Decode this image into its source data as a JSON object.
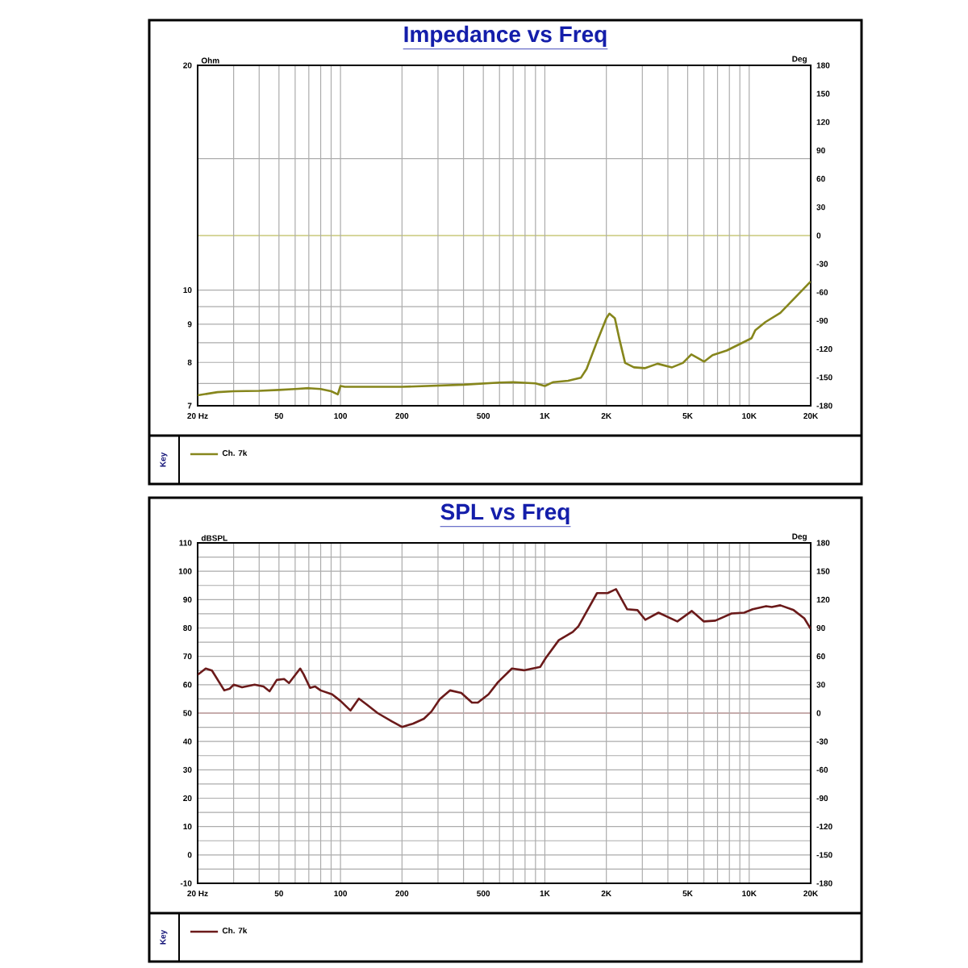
{
  "chart_data": [
    {
      "type": "line",
      "title": "Impedance vs Freq",
      "ylabel": "Ohm",
      "y2label": "Deg",
      "legend_title": "Key",
      "log": "xy",
      "grid": true,
      "legend": "bottom",
      "xlim": [
        20,
        20000
      ],
      "ylim": [
        7,
        20
      ],
      "y2lim": [
        -180,
        180
      ],
      "xticks": [
        {
          "value": 20,
          "label": "20 Hz"
        },
        {
          "value": 30,
          "label": null
        },
        {
          "value": 40,
          "label": null
        },
        {
          "value": 50,
          "label": "50"
        },
        {
          "value": 60,
          "label": null
        },
        {
          "value": 70,
          "label": null
        },
        {
          "value": 80,
          "label": null
        },
        {
          "value": 90,
          "label": null
        },
        {
          "value": 100,
          "label": "100"
        },
        {
          "value": 200,
          "label": "200"
        },
        {
          "value": 300,
          "label": null
        },
        {
          "value": 400,
          "label": null
        },
        {
          "value": 500,
          "label": "500"
        },
        {
          "value": 600,
          "label": null
        },
        {
          "value": 700,
          "label": null
        },
        {
          "value": 800,
          "label": null
        },
        {
          "value": 900,
          "label": null
        },
        {
          "value": 1000,
          "label": "1K"
        },
        {
          "value": 2000,
          "label": "2K"
        },
        {
          "value": 3000,
          "label": null
        },
        {
          "value": 4000,
          "label": null
        },
        {
          "value": 5000,
          "label": "5K"
        },
        {
          "value": 6000,
          "label": null
        },
        {
          "value": 7000,
          "label": null
        },
        {
          "value": 8000,
          "label": null
        },
        {
          "value": 9000,
          "label": null
        },
        {
          "value": 10000,
          "label": "10K"
        },
        {
          "value": 20000,
          "label": "20K"
        }
      ],
      "yticks": [
        7,
        {
          "value": 7.5,
          "label": null
        },
        8,
        {
          "value": 8.5,
          "label": null
        },
        9,
        {
          "value": 9.5,
          "label": null
        },
        10,
        {
          "value": 15,
          "label": null
        },
        20
      ],
      "y2ticks": [
        -180,
        -150,
        -120,
        -90,
        -60,
        -30,
        0,
        30,
        60,
        90,
        120,
        150,
        180
      ],
      "ref_lines": [
        {
          "axis": "y2",
          "value": 0,
          "color": "#c8c87a"
        }
      ],
      "series": [
        {
          "name": "Ch. 7k",
          "color": "#86861c",
          "x": [
            20,
            25,
            30,
            40,
            50,
            60,
            70,
            80,
            90,
            97,
            100,
            105,
            200,
            400,
            600,
            700,
            900,
            1000,
            1100,
            1300,
            1500,
            1600,
            1800,
            2000,
            2070,
            2200,
            2320,
            2470,
            2730,
            3080,
            3560,
            4190,
            4740,
            5210,
            5700,
            6020,
            6620,
            7770,
            10270,
            10700,
            12000,
            14200,
            20000
          ],
          "values": [
            7.23,
            7.3,
            7.32,
            7.33,
            7.35,
            7.37,
            7.39,
            7.37,
            7.32,
            7.25,
            7.44,
            7.42,
            7.42,
            7.47,
            7.52,
            7.53,
            7.5,
            7.44,
            7.53,
            7.56,
            7.63,
            7.84,
            8.53,
            9.17,
            9.3,
            9.17,
            8.58,
            7.99,
            7.88,
            7.86,
            7.97,
            7.88,
            7.99,
            8.2,
            8.09,
            8.02,
            8.18,
            8.3,
            8.62,
            8.83,
            9.06,
            9.32,
            10.27
          ]
        }
      ]
    },
    {
      "type": "line",
      "title": "SPL vs Freq",
      "ylabel": "dBSPL",
      "y2label": "Deg",
      "legend_title": "Key",
      "log": "x",
      "grid": true,
      "legend": "bottom",
      "xlim": [
        20,
        20000
      ],
      "ylim": [
        -10,
        110
      ],
      "y2lim": [
        -180,
        180
      ],
      "xticks": [
        {
          "value": 20,
          "label": "20 Hz"
        },
        {
          "value": 30,
          "label": null
        },
        {
          "value": 40,
          "label": null
        },
        {
          "value": 50,
          "label": "50"
        },
        {
          "value": 60,
          "label": null
        },
        {
          "value": 70,
          "label": null
        },
        {
          "value": 80,
          "label": null
        },
        {
          "value": 90,
          "label": null
        },
        {
          "value": 100,
          "label": "100"
        },
        {
          "value": 200,
          "label": "200"
        },
        {
          "value": 300,
          "label": null
        },
        {
          "value": 400,
          "label": null
        },
        {
          "value": 500,
          "label": "500"
        },
        {
          "value": 600,
          "label": null
        },
        {
          "value": 700,
          "label": null
        },
        {
          "value": 800,
          "label": null
        },
        {
          "value": 900,
          "label": null
        },
        {
          "value": 1000,
          "label": "1K"
        },
        {
          "value": 2000,
          "label": "2K"
        },
        {
          "value": 3000,
          "label": null
        },
        {
          "value": 4000,
          "label": null
        },
        {
          "value": 5000,
          "label": "5K"
        },
        {
          "value": 6000,
          "label": null
        },
        {
          "value": 7000,
          "label": null
        },
        {
          "value": 8000,
          "label": null
        },
        {
          "value": 9000,
          "label": null
        },
        {
          "value": 10000,
          "label": "10K"
        },
        {
          "value": 20000,
          "label": "20K"
        }
      ],
      "yticks": [
        -10,
        {
          "value": -5,
          "label": null
        },
        0,
        {
          "value": 5,
          "label": null
        },
        10,
        {
          "value": 15,
          "label": null
        },
        20,
        {
          "value": 25,
          "label": null
        },
        30,
        {
          "value": 35,
          "label": null
        },
        40,
        {
          "value": 45,
          "label": null
        },
        50,
        {
          "value": 55,
          "label": null
        },
        60,
        {
          "value": 65,
          "label": null
        },
        70,
        {
          "value": 75,
          "label": null
        },
        80,
        {
          "value": 85,
          "label": null
        },
        90,
        {
          "value": 95,
          "label": null
        },
        100,
        {
          "value": 105,
          "label": null
        },
        110
      ],
      "y2ticks": [
        -180,
        -150,
        -120,
        -90,
        -60,
        -30,
        0,
        30,
        60,
        90,
        120,
        150,
        180
      ],
      "ref_lines": [
        {
          "axis": "y2",
          "value": 0,
          "color": "#d89090"
        }
      ],
      "series": [
        {
          "name": "Ch. 7k",
          "color": "#6b1a1a",
          "x": [
            20,
            21.9,
            23.5,
            27,
            28.7,
            30,
            33,
            38,
            42,
            45,
            48.8,
            53,
            56,
            63.5,
            66,
            71,
            75,
            80,
            91,
            100,
            112,
            123,
            135,
            152,
            178,
            200,
            227,
            256,
            279,
            306,
            344,
            390,
            440,
            470,
            530,
            590,
            690,
            790,
            950,
            1010,
            1170,
            1370,
            1460,
            1800,
            2030,
            2230,
            2530,
            2840,
            3100,
            3600,
            4450,
            5240,
            6000,
            6830,
            8200,
            9450,
            10400,
            12100,
            12900,
            14200,
            16500,
            18600,
            20000
          ],
          "values": [
            63.5,
            65.7,
            65,
            58,
            58.6,
            60,
            59.1,
            60,
            59.4,
            57.7,
            61.7,
            62,
            60.6,
            65.7,
            63.7,
            58.9,
            59.4,
            58,
            56.6,
            54.3,
            50.9,
            55.1,
            52.9,
            50,
            47.1,
            45.1,
            46.3,
            48,
            50.6,
            54.9,
            58,
            57.1,
            53.7,
            53.7,
            56.6,
            60.9,
            65.7,
            65.1,
            66.3,
            69.4,
            75.7,
            78.6,
            80.6,
            92.3,
            92.3,
            93.7,
            86.6,
            86.3,
            82.9,
            85.4,
            82.3,
            86,
            82.3,
            82.6,
            85.1,
            85.4,
            86.6,
            87.7,
            87.4,
            88,
            86.3,
            83.4,
            79.7
          ]
        }
      ]
    }
  ]
}
